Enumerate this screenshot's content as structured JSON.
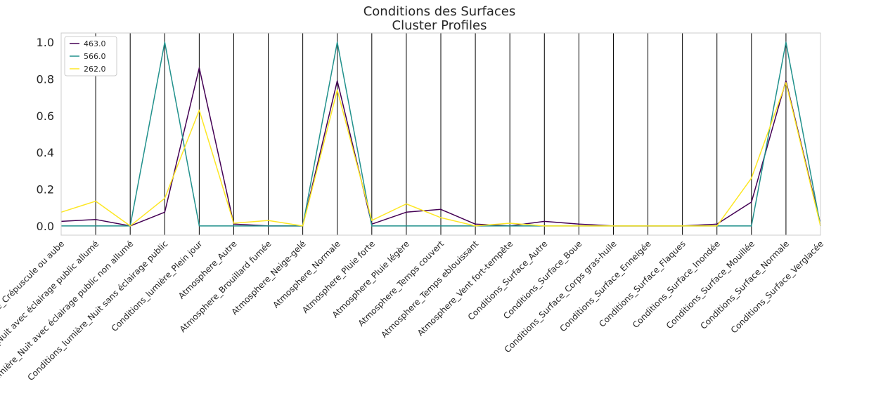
{
  "chart_data": {
    "type": "line",
    "title": "Conditions des Surfaces",
    "subtitle": "Cluster Profiles",
    "xlabel": "",
    "ylabel": "",
    "ylim": [
      -0.05,
      1.05
    ],
    "yticks": [
      "0.0",
      "0.2",
      "0.4",
      "0.6",
      "0.8",
      "1.0"
    ],
    "grid": "vertical lines at each category",
    "legend_position": "top-left",
    "categories": [
      "Conditions_lumière_Crépuscule ou aube",
      "Conditions_lumière_Nuit avec éclairage public allumé",
      "Conditions_lumière_Nuit avec éclairage public non allumé",
      "Conditions_lumière_Nuit sans éclairage public",
      "Conditions_lumière_Plein jour",
      "Atmosphere_Autre",
      "Atmosphere_Brouillard fumée",
      "Atmosphere_Neige-gelé",
      "Atmosphere_Normale",
      "Atmosphere_Pluie forte",
      "Atmosphere_Pluie légère",
      "Atmosphere_Temps couvert",
      "Atmosphere_Temps eblouissant",
      "Atmosphere_Vent fort-tempête",
      "Conditions_Surface_Autre",
      "Conditions_Surface_Boue",
      "Conditions_Surface_Corps gras-huile",
      "Conditions_Surface_Enneigée",
      "Conditions_Surface_Flaques",
      "Conditions_Surface_Inondée",
      "Conditions_Surface_Mouillée",
      "Conditions_Surface_Normale",
      "Conditions_Surface_Verglacée"
    ],
    "series": [
      {
        "name": "463.0",
        "color": "#440154",
        "values": [
          0.025,
          0.035,
          0.0,
          0.075,
          0.86,
          0.01,
          0.0,
          0.0,
          0.79,
          0.01,
          0.075,
          0.09,
          0.01,
          0.0,
          0.025,
          0.01,
          0.0,
          0.0,
          0.0,
          0.01,
          0.13,
          0.79,
          0.01
        ]
      },
      {
        "name": "566.0",
        "color": "#21918c",
        "values": [
          0.0,
          0.0,
          0.0,
          1.0,
          0.0,
          0.0,
          0.0,
          0.0,
          1.0,
          0.0,
          0.0,
          0.0,
          0.0,
          0.0,
          0.0,
          0.0,
          0.0,
          0.0,
          0.0,
          0.0,
          0.0,
          1.0,
          0.0
        ]
      },
      {
        "name": "262.0",
        "color": "#fde725",
        "values": [
          0.075,
          0.135,
          0.0,
          0.15,
          0.63,
          0.015,
          0.03,
          0.0,
          0.74,
          0.03,
          0.12,
          0.045,
          0.0,
          0.015,
          0.0,
          0.0,
          0.0,
          0.0,
          0.0,
          0.0,
          0.26,
          0.78,
          0.0
        ]
      }
    ]
  }
}
